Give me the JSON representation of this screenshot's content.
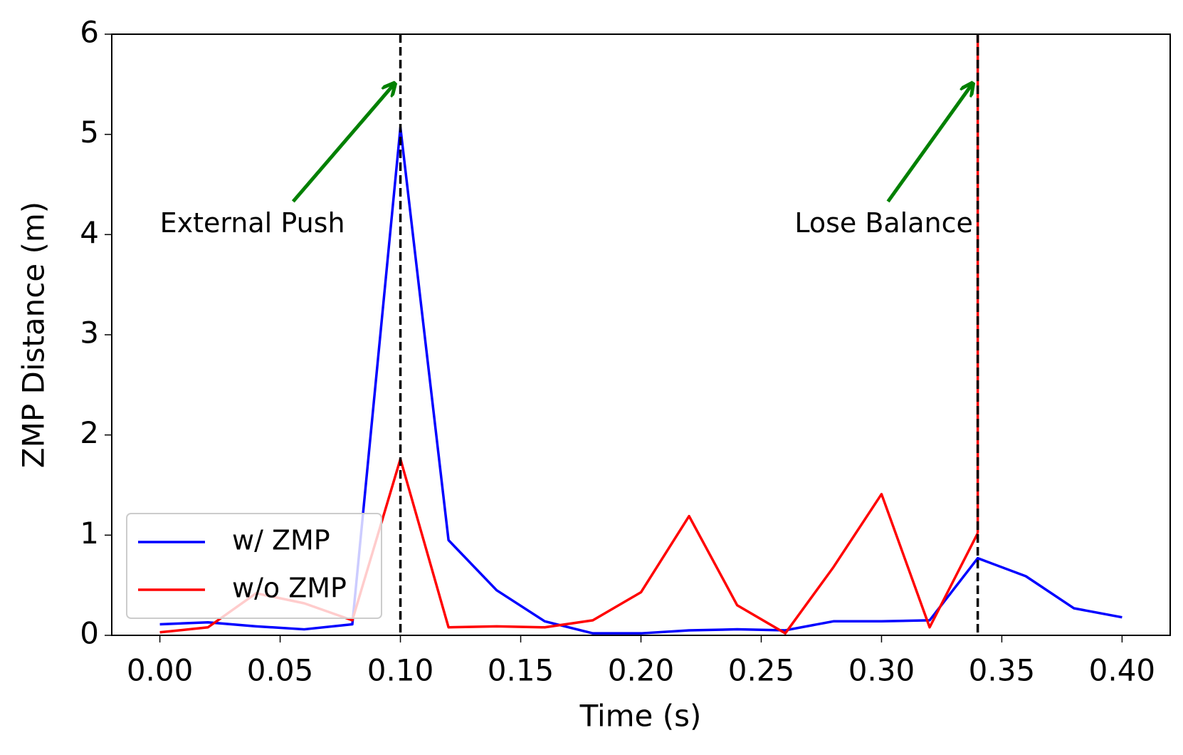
{
  "chart_data": {
    "type": "line",
    "xlabel": "Time (s)",
    "ylabel": "ZMP Distance (m)",
    "x": [
      0.0,
      0.02,
      0.04,
      0.06,
      0.08,
      0.1,
      0.12,
      0.14,
      0.16,
      0.18,
      0.2,
      0.22,
      0.24,
      0.26,
      0.28,
      0.3,
      0.32,
      0.34,
      0.36,
      0.38,
      0.4
    ],
    "series": [
      {
        "name": "w/ ZMP",
        "color": "#0000ff",
        "values": [
          0.11,
          0.13,
          0.09,
          0.06,
          0.11,
          5.07,
          0.95,
          0.45,
          0.14,
          0.02,
          0.02,
          0.05,
          0.06,
          0.05,
          0.14,
          0.14,
          0.15,
          0.77,
          0.59,
          0.27,
          0.18
        ]
      },
      {
        "name": "w/o ZMP",
        "color": "#ff0000",
        "values": [
          0.03,
          0.08,
          0.42,
          0.32,
          0.15,
          1.76,
          0.08,
          0.09,
          0.08,
          0.15,
          0.43,
          1.19,
          0.3,
          0.02,
          0.68,
          1.41,
          0.08,
          1.02,
          null,
          null,
          null
        ]
      }
    ],
    "xlim": [
      -0.02,
      0.42
    ],
    "ylim": [
      0,
      6
    ],
    "xticks": [
      {
        "value": 0,
        "label": "0.00"
      },
      0.05,
      {
        "value": 0.1,
        "label": "0.10"
      },
      0.15,
      {
        "value": 0.2,
        "label": "0.20"
      },
      0.25,
      {
        "value": 0.3,
        "label": "0.30"
      },
      0.35,
      {
        "value": 0.4,
        "label": "0.40"
      }
    ],
    "yticks": [
      0,
      1,
      2,
      3,
      4,
      5,
      6
    ],
    "vlines": [
      0.1,
      0.34
    ],
    "annotations": [
      {
        "text": "External Push",
        "text_xy": [
          0.0,
          4.1
        ],
        "arrow": [
          0.0554,
          4.33,
          0.0973,
          5.5
        ],
        "color": "#008000",
        "align": "left"
      },
      {
        "text": "Lose Balance",
        "text_xy": [
          0.338,
          4.1
        ],
        "arrow": [
          0.3027,
          4.33,
          0.3376,
          5.5
        ],
        "color": "#008000",
        "align": "right"
      }
    ],
    "legend": "lower left"
  }
}
